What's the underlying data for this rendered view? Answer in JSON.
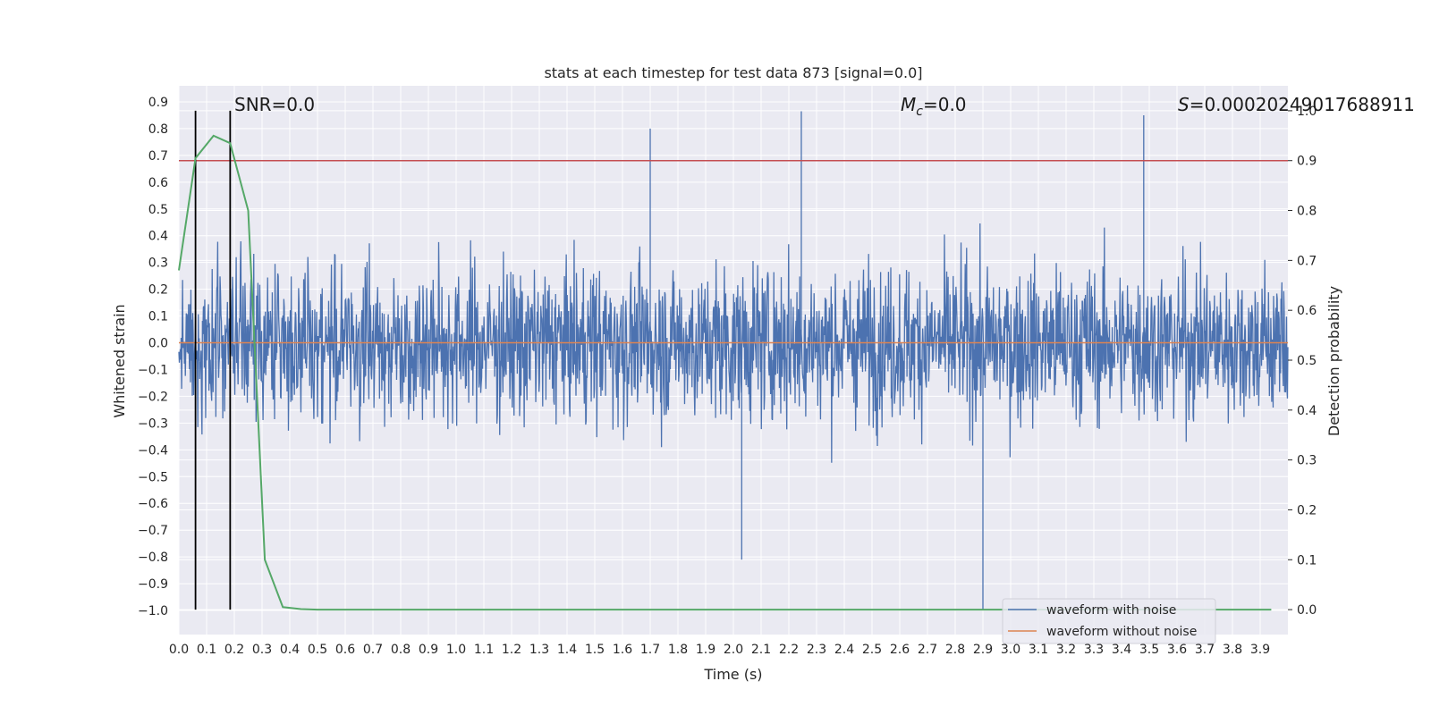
{
  "chart_data": {
    "type": "line",
    "title": "stats at each timestep for test data 873 [signal=0.0]",
    "xlabel": "Time (s)",
    "ylabel": "Whitened strain",
    "ylabel_right": "Detection probability",
    "xlim": [
      0.0,
      4.0
    ],
    "ylim": [
      -1.09,
      0.96
    ],
    "ylim_right": [
      -0.05,
      1.05
    ],
    "x_ticks": [
      "0.0",
      "0.1",
      "0.2",
      "0.3",
      "0.4",
      "0.5",
      "0.6",
      "0.7",
      "0.8",
      "0.9",
      "1.0",
      "1.1",
      "1.2",
      "1.3",
      "1.4",
      "1.5",
      "1.6",
      "1.7",
      "1.8",
      "1.9",
      "2.0",
      "2.1",
      "2.2",
      "2.3",
      "2.4",
      "2.5",
      "2.6",
      "2.7",
      "2.8",
      "2.9",
      "3.0",
      "3.1",
      "3.2",
      "3.3",
      "3.4",
      "3.5",
      "3.6",
      "3.7",
      "3.8",
      "3.9"
    ],
    "y_ticks": [
      "0.9",
      "0.8",
      "0.7",
      "0.6",
      "0.5",
      "0.4",
      "0.3",
      "0.2",
      "0.1",
      "0.0",
      "−0.1",
      "−0.2",
      "−0.3",
      "−0.4",
      "−0.5",
      "−0.6",
      "−0.7",
      "−0.8",
      "−0.9",
      "−1.0"
    ],
    "y_ticks_right": [
      "1.0",
      "0.9",
      "0.8",
      "0.7",
      "0.6",
      "0.5",
      "0.4",
      "0.3",
      "0.2",
      "0.1",
      "0.0"
    ],
    "annotations": {
      "snr": "SNR=0.0",
      "mc_symbol": "M",
      "mc_sub": "c",
      "mc_value": "=0.0",
      "s_symbol": "S",
      "s_value": "=0.00020249017688911"
    },
    "series": [
      {
        "name": "waveform with noise",
        "color": "#4c72b0",
        "note": "noise trace, amplitude roughly within [-1.0, 0.87]"
      },
      {
        "name": "waveform without noise",
        "color": "#dd8452",
        "values_const": 0.0
      },
      {
        "name": "detection probability",
        "color": "#55a868",
        "axis": "right",
        "x": [
          0.0,
          0.06,
          0.125,
          0.185,
          0.25,
          0.31,
          0.375,
          0.44,
          0.5,
          1.0,
          2.0,
          3.0,
          3.94
        ],
        "y": [
          0.68,
          0.905,
          0.95,
          0.935,
          0.8,
          0.1,
          0.005,
          0.001,
          0.0,
          0.0,
          0.0,
          0.0,
          0.0
        ]
      }
    ],
    "threshold": {
      "value": 0.9,
      "axis": "right",
      "color": "#c44e52"
    },
    "vlines": [
      0.06,
      0.185
    ],
    "colors": {
      "background": "#eaeaf2",
      "grid": "#ffffff",
      "vline": "#000000"
    },
    "legend": {
      "position": "lower-right",
      "entries": [
        "waveform with noise",
        "waveform without noise"
      ]
    }
  }
}
